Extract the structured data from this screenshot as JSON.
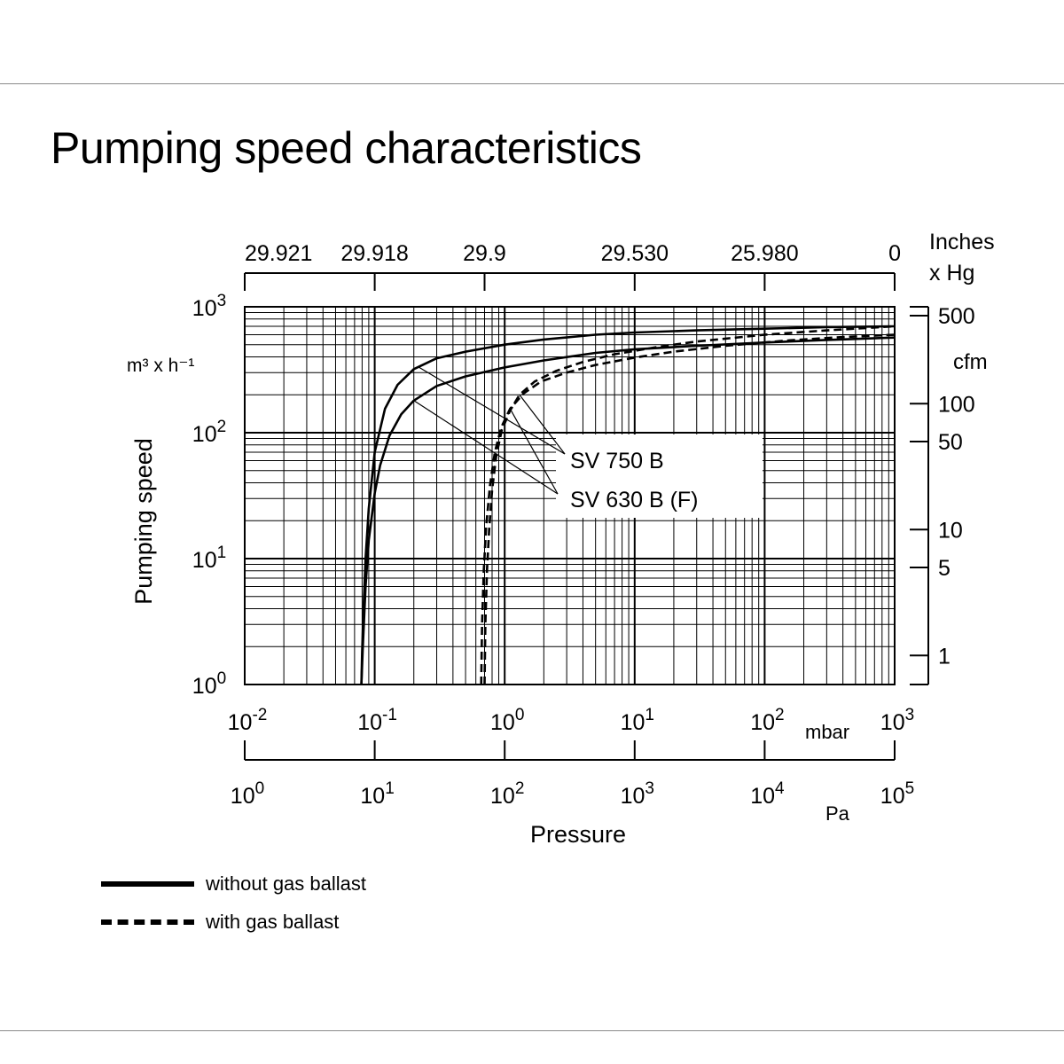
{
  "page": {
    "title": "Pumping speed characteristics"
  },
  "chart_data": {
    "type": "line",
    "title": "Pumping speed characteristics",
    "x_scale": "log",
    "y_scale": "log",
    "xlim": [
      0.01,
      1000
    ],
    "ylim": [
      1,
      1000
    ],
    "xlabel": "Pressure",
    "ylabel": "Pumping speed",
    "y_unit": "m³ x h⁻¹",
    "x_unit_mbar": "mbar",
    "x_unit_pa": "Pa",
    "grid": true,
    "x_ticks_mbar": [
      {
        "value": 0.01,
        "base": "10",
        "exp": "-2"
      },
      {
        "value": 0.1,
        "base": "10",
        "exp": "-1"
      },
      {
        "value": 1,
        "base": "10",
        "exp": "0"
      },
      {
        "value": 10,
        "base": "10",
        "exp": "1"
      },
      {
        "value": 100,
        "base": "10",
        "exp": "2"
      },
      {
        "value": 1000,
        "base": "10",
        "exp": "3"
      }
    ],
    "x_ticks_pa": [
      {
        "value": 0.01,
        "base": "10",
        "exp": "0"
      },
      {
        "value": 0.1,
        "base": "10",
        "exp": "1"
      },
      {
        "value": 1,
        "base": "10",
        "exp": "2"
      },
      {
        "value": 10,
        "base": "10",
        "exp": "3"
      },
      {
        "value": 100,
        "base": "10",
        "exp": "4"
      },
      {
        "value": 1000,
        "base": "10",
        "exp": "5"
      }
    ],
    "x_ticks_inhg": [
      {
        "value": 0.01,
        "label": "29.921"
      },
      {
        "value": 0.1,
        "label": "29.918"
      },
      {
        "value": 0.7,
        "label": "29.9"
      },
      {
        "value": 10,
        "label": "29.530"
      },
      {
        "value": 100,
        "label": "25.980"
      },
      {
        "value": 1000,
        "label": "0"
      }
    ],
    "inhg_unit": [
      "Inches",
      "x Hg"
    ],
    "y_ticks": [
      {
        "value": 1,
        "base": "10",
        "exp": "0"
      },
      {
        "value": 10,
        "base": "10",
        "exp": "1"
      },
      {
        "value": 100,
        "base": "10",
        "exp": "2"
      },
      {
        "value": 1000,
        "base": "10",
        "exp": "3"
      }
    ],
    "y_ticks_cfm": [
      {
        "value": 850,
        "label": "500"
      },
      {
        "value": 170,
        "label": "100"
      },
      {
        "value": 85,
        "label": "50"
      },
      {
        "value": 17,
        "label": "10"
      },
      {
        "value": 8.5,
        "label": "5"
      },
      {
        "value": 1.7,
        "label": "1"
      }
    ],
    "cfm_unit": "cfm",
    "series": [
      {
        "name": "SV 750 B",
        "style": "solid",
        "x": [
          0.079,
          0.08,
          0.082,
          0.085,
          0.09,
          0.1,
          0.12,
          0.15,
          0.2,
          0.3,
          0.5,
          1,
          2,
          5,
          10,
          30,
          100,
          300,
          1000
        ],
        "y": [
          1,
          1.8,
          4,
          10,
          25,
          70,
          155,
          240,
          320,
          390,
          440,
          500,
          550,
          600,
          625,
          650,
          670,
          690,
          700
        ]
      },
      {
        "name": "SV 630 B (F)",
        "style": "solid",
        "x": [
          0.079,
          0.081,
          0.085,
          0.09,
          0.1,
          0.11,
          0.13,
          0.16,
          0.2,
          0.3,
          0.5,
          1,
          2,
          5,
          10,
          30,
          100,
          300,
          1000
        ],
        "y": [
          1,
          2,
          6,
          14,
          33,
          55,
          95,
          140,
          180,
          235,
          280,
          330,
          375,
          430,
          460,
          490,
          520,
          545,
          570
        ]
      },
      {
        "name": "SV 750 B",
        "style": "dashed",
        "x": [
          0.7,
          0.71,
          0.73,
          0.76,
          0.8,
          0.86,
          0.95,
          1.1,
          1.3,
          1.7,
          2.5,
          4,
          7,
          15,
          30,
          100,
          300,
          1000
        ],
        "y": [
          1,
          3,
          8,
          17,
          35,
          65,
          105,
          150,
          200,
          255,
          310,
          365,
          420,
          480,
          530,
          600,
          650,
          700
        ]
      },
      {
        "name": "SV 630 B (F)",
        "style": "dashed",
        "x": [
          0.66,
          0.67,
          0.69,
          0.72,
          0.77,
          0.84,
          0.94,
          1.1,
          1.4,
          1.9,
          3,
          5,
          10,
          20,
          50,
          150,
          400,
          1000
        ],
        "y": [
          1,
          3,
          8,
          18,
          38,
          70,
          110,
          155,
          205,
          255,
          300,
          345,
          395,
          440,
          490,
          540,
          575,
          600
        ]
      }
    ],
    "annotation_box": [
      "SV 750 B",
      "SV 630 B (F)"
    ]
  },
  "legend": {
    "items": [
      {
        "label": "without gas ballast",
        "style": "solid"
      },
      {
        "label": "with gas ballast",
        "style": "dashed"
      }
    ]
  }
}
